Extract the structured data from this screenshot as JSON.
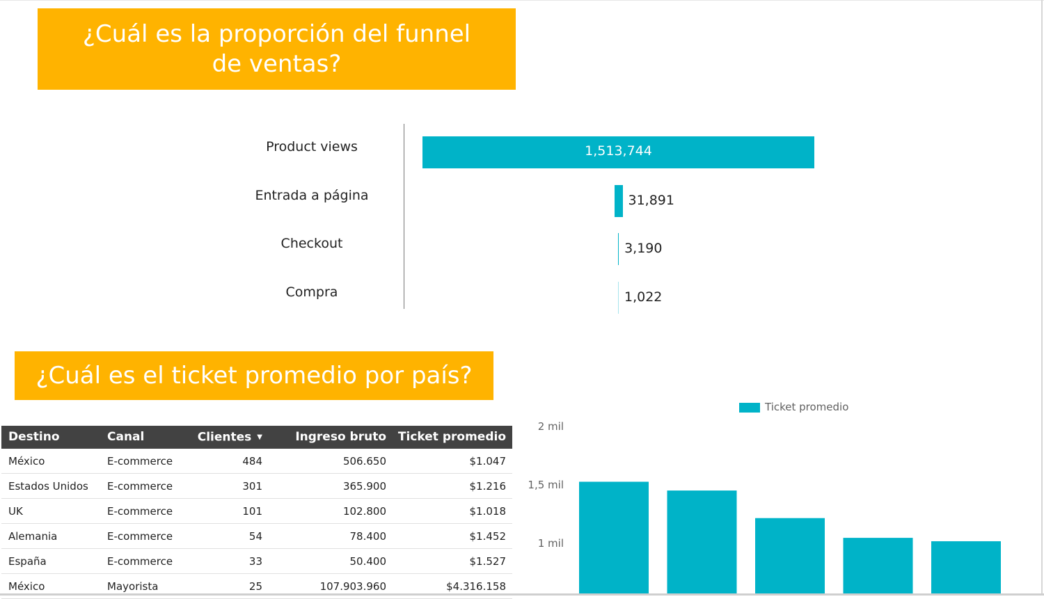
{
  "funnel_section": {
    "title": "¿Cuál es la proporción del funnel de ventas?",
    "stages": [
      {
        "label": "Product views",
        "value": 1513744,
        "display": "1,513,744"
      },
      {
        "label": "Entrada a página",
        "value": 31891,
        "display": "31,891"
      },
      {
        "label": "Checkout",
        "value": 3190,
        "display": "3,190"
      },
      {
        "label": "Compra",
        "value": 1022,
        "display": "1,022"
      }
    ],
    "bar_color": "#00b3c8"
  },
  "ticket_section": {
    "title": "¿Cuál es el ticket promedio por país?",
    "table": {
      "headers": [
        "Destino",
        "Canal",
        "Clientes",
        "Ingreso bruto",
        "Ticket promedio"
      ],
      "sorted_column": "Clientes",
      "sort_direction": "descending",
      "rows": [
        [
          "México",
          "E-commerce",
          "484",
          "506.650",
          "$1.047"
        ],
        [
          "Estados Unidos",
          "E-commerce",
          "301",
          "365.900",
          "$1.216"
        ],
        [
          "UK",
          "E-commerce",
          "101",
          "102.800",
          "$1.018"
        ],
        [
          "Alemania",
          "E-commerce",
          "54",
          "78.400",
          "$1.452"
        ],
        [
          "España",
          "E-commerce",
          "33",
          "50.400",
          "$1.527"
        ],
        [
          "México",
          "Mayorista",
          "25",
          "107.903.960",
          "$4.316.158"
        ]
      ]
    }
  },
  "chart_data": {
    "type": "bar",
    "legend": "Ticket promedio",
    "legend_position": "top",
    "series": [
      {
        "name": "Ticket promedio",
        "values": [
          1527,
          1452,
          1216,
          1047,
          1018
        ]
      }
    ],
    "yticks": [
      {
        "value": 2000,
        "label": "2 mil"
      },
      {
        "value": 1500,
        "label": "1,5 mil"
      },
      {
        "value": 1000,
        "label": "1 mil"
      }
    ],
    "color": "#00b3c8"
  },
  "colors": {
    "accent": "#ffb300",
    "bar": "#00b3c8",
    "table_header": "#424242"
  }
}
